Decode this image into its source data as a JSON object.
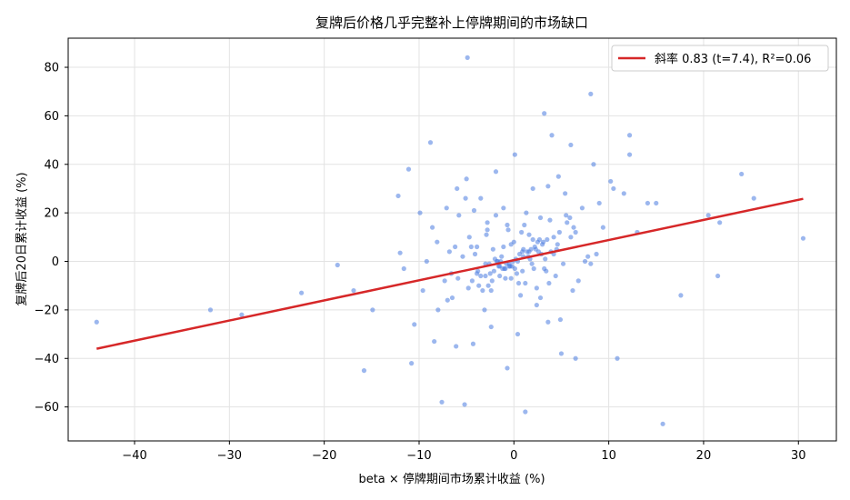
{
  "chart_data": {
    "type": "scatter",
    "title": "复牌后价格几乎完整补上停牌期间的市场缺口",
    "xlabel": "beta × 停牌期间市场累计收益 (%)",
    "ylabel": "复牌后20日累计收益 (%)",
    "xlim": [
      -47,
      34
    ],
    "ylim": [
      -74,
      92
    ],
    "xticks": [
      -40,
      -30,
      -20,
      -10,
      0,
      10,
      20,
      30
    ],
    "xtick_labels": [
      "−40",
      "−30",
      "−20",
      "−10",
      "0",
      "10",
      "20",
      "30"
    ],
    "yticks": [
      -60,
      -40,
      -20,
      0,
      20,
      40,
      60,
      80
    ],
    "ytick_labels": [
      "−60",
      "−40",
      "−20",
      "0",
      "20",
      "40",
      "60",
      "80"
    ],
    "grid": true,
    "legend_position": "top-right",
    "point_color": "#4b7be0",
    "line_color": "#d62728",
    "fit_line": {
      "name": "斜率 0.83 (t=7.4), R²=0.06",
      "x": [
        -44,
        30.5
      ],
      "y": [
        -36,
        25.8
      ]
    },
    "points": {
      "x": [
        -44,
        -32,
        -28.7,
        -22.4,
        -18.6,
        -16.9,
        -15.8,
        -14.9,
        -12.2,
        -12.0,
        -11.6,
        -11.1,
        -10.8,
        -10.5,
        -9.9,
        -9.6,
        -9.2,
        -8.8,
        -8.6,
        -8.4,
        -8.1,
        -7.6,
        -7.3,
        -7.1,
        -6.8,
        -6.5,
        -6.0,
        -5.8,
        -5.2,
        -4.9,
        -4.7,
        -4.3,
        -3.9,
        -3.5,
        -3.1,
        -2.8,
        -2.4,
        -1.9,
        -1.5,
        -1.1,
        -0.7,
        -0.3,
        0.1,
        0.4,
        0.8,
        1.2,
        1.6,
        2.0,
        2.4,
        2.8,
        3.2,
        3.6,
        4.0,
        4.5,
        5.0,
        5.5,
        6.0,
        6.5,
        7.2,
        8.1,
        8.7,
        9.4,
        10.2,
        10.9,
        11.6,
        12.2,
        13.0,
        14.1,
        15.0,
        15.7,
        17.6,
        20.5,
        21.5,
        21.7,
        24.0,
        25.3,
        30.5,
        -5.0,
        3.2,
        8.1,
        12.2,
        4.2,
        1.0,
        -0.5,
        2.5,
        -3.0,
        6.3,
        -1.8,
        0.9,
        -2.2,
        3.7,
        -4.1,
        1.7,
        -0.9,
        4.8,
        -6.2,
        2.1,
        -1.3,
        0.3,
        5.6,
        -2.6,
        1.4,
        -3.7,
        3.0,
        -0.1,
        6.8,
        -5.4,
        2.7,
        -1.6,
        0.6,
        4.4,
        -2.9,
        1.9,
        -4.5,
        3.4,
        -0.6,
        7.5,
        -3.3,
        2.3,
        -1.0,
        0.0,
        5.2,
        -2.0,
        1.1,
        -5.9,
        3.9,
        -0.4,
        6.0,
        -2.5,
        2.9,
        -1.4,
        0.5,
        4.6,
        -3.8,
        1.5,
        -0.8,
        9.0,
        -7.0,
        2.2,
        -1.2,
        0.2,
        5.9,
        -2.3,
        1.8,
        -4.8,
        3.5,
        -0.2,
        6.5,
        -3.5,
        2.6,
        -1.7,
        0.7,
        4.2,
        -2.7,
        1.3,
        -6.6,
        3.1,
        -0.9,
        7.8,
        -4.2,
        2.4,
        -1.1,
        0.4,
        5.4,
        -2.1,
        1.6,
        -3.0,
        3.8,
        -0.3,
        10.5,
        -8.0,
        2.0,
        -1.5,
        0.9,
        4.9,
        -2.8,
        1.2,
        -5.1,
        3.3,
        -0.7,
        6.2,
        -3.9,
        2.8,
        -1.9,
        0.1,
        4.7,
        -2.4,
        1.0,
        -4.4,
        3.6,
        -0.5,
        8.4,
        -6.1
      ],
      "y": [
        -25,
        -20,
        -22,
        -13,
        -1.5,
        -12,
        -45,
        -20,
        27,
        3.5,
        -3,
        38,
        -42,
        -26,
        20,
        -12,
        0,
        49,
        14,
        -33,
        8,
        -58,
        -8,
        22,
        4,
        -15,
        30,
        19,
        -59,
        84,
        10,
        -34,
        -5,
        26,
        -20,
        16,
        -12,
        37,
        -6,
        22,
        -44,
        7,
        44,
        -30,
        12,
        -62,
        4,
        30,
        -11,
        18,
        61,
        -25,
        52,
        5,
        -38,
        19,
        48,
        -40,
        22,
        69,
        3,
        14,
        33,
        -40,
        28,
        52,
        12,
        24,
        24,
        -67,
        -14,
        19,
        -6,
        16,
        36,
        26,
        9.5,
        34,
        -3,
        -1,
        44,
        10,
        2,
        -2,
        8,
        -6,
        14,
        0,
        -4,
        5,
        -9,
        3,
        1,
        -7,
        12,
        6,
        -3,
        2,
        -5,
        16,
        -1,
        4,
        -10,
        7,
        0,
        -8,
        2,
        9,
        -2,
        3,
        -6,
        11,
        -1,
        6,
        -4,
        13,
        0,
        -12,
        5,
        -3,
        8,
        -1,
        1,
        15,
        -7,
        4,
        -2,
        10,
        -5,
        3,
        0,
        -9,
        7,
        -4,
        2,
        -1,
        24,
        -16,
        6,
        -3,
        1,
        18,
        -8,
        5,
        -11,
        9,
        -2,
        12,
        -6,
        4,
        0,
        -14,
        3,
        -10,
        20,
        -5,
        8,
        -3,
        2,
        21,
        -18,
        6,
        0,
        28,
        -4,
        11,
        -1,
        17,
        -7,
        30,
        -20,
        9,
        -2,
        4,
        -24,
        13,
        -9,
        26,
        1,
        15,
        -12,
        6,
        -15,
        19,
        -3,
        35,
        -27,
        5,
        -8,
        31,
        -1,
        40,
        -35
      ]
    }
  }
}
